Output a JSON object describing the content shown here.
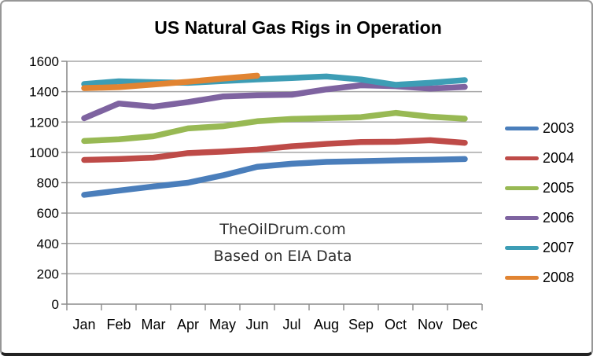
{
  "window": {
    "background": "#ffffff",
    "frame_border_color": "#979797",
    "frame_bottom_edge_color": "#222222"
  },
  "chart_data": {
    "type": "line",
    "title": "US Natural Gas Rigs in Operation",
    "xlabel": "",
    "ylabel": "",
    "x": [
      "Jan",
      "Feb",
      "Mar",
      "Apr",
      "May",
      "Jun",
      "Jul",
      "Aug",
      "Sep",
      "Oct",
      "Nov",
      "Dec"
    ],
    "ylim": [
      0,
      1600
    ],
    "y_ticks": [
      0,
      200,
      400,
      600,
      800,
      1000,
      1200,
      1400,
      1600
    ],
    "grid": true,
    "legend_position": "right",
    "gridline_color": "#a6a6a6",
    "axis_color": "#8c8c8c",
    "line_width": 7.5,
    "series": [
      {
        "name": "2003",
        "color": "#4a7ebb",
        "values": [
          720,
          748,
          775,
          800,
          848,
          905,
          925,
          937,
          942,
          947,
          951,
          956
        ]
      },
      {
        "name": "2004",
        "color": "#be4b48",
        "values": [
          950,
          956,
          965,
          995,
          1005,
          1018,
          1040,
          1056,
          1068,
          1070,
          1080,
          1063
        ]
      },
      {
        "name": "2005",
        "color": "#98b954",
        "values": [
          1075,
          1086,
          1106,
          1158,
          1172,
          1205,
          1220,
          1226,
          1232,
          1260,
          1235,
          1222
        ]
      },
      {
        "name": "2006",
        "color": "#7e63a0",
        "values": [
          1225,
          1322,
          1301,
          1331,
          1368,
          1376,
          1380,
          1415,
          1442,
          1436,
          1420,
          1431
        ]
      },
      {
        "name": "2007",
        "color": "#3d9db5",
        "values": [
          1450,
          1468,
          1462,
          1458,
          1470,
          1481,
          1490,
          1500,
          1480,
          1445,
          1458,
          1476
        ]
      },
      {
        "name": "2008",
        "color": "#e18432",
        "values": [
          1423,
          1430,
          1447,
          1465,
          1486,
          1505
        ]
      }
    ],
    "annotations": [
      "TheOilDrum.com",
      "Based on EIA Data"
    ]
  }
}
